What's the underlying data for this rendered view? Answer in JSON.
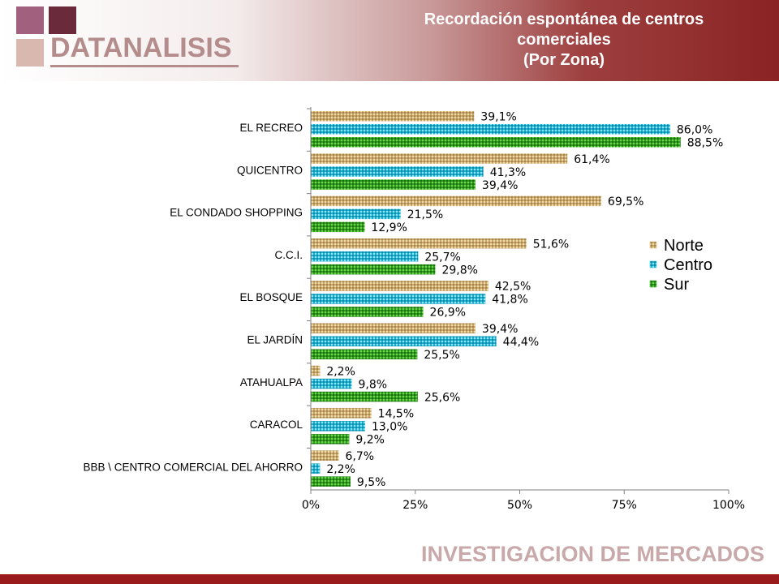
{
  "header": {
    "logo_text": "DATANALISIS",
    "title_line1": "Recordación espontánea de centros",
    "title_line2": "comerciales",
    "title_line3": "(Por Zona)"
  },
  "footer": {
    "text": "INVESTIGACION DE MERCADOS"
  },
  "colors": {
    "norte": "#c9a96a",
    "centro": "#1fb0d0",
    "sur": "#2e9c1c",
    "header_dark": "#8a2323",
    "footer_bar": "#9a1b1b"
  },
  "chart_data": {
    "type": "bar",
    "orientation": "horizontal",
    "categories": [
      "EL RECREO",
      "QUICENTRO",
      "EL CONDADO SHOPPING",
      "C.C.I.",
      "EL BOSQUE",
      "EL JARDÍN",
      "ATAHUALPA",
      "CARACOL",
      "BBB \\ CENTRO COMERCIAL DEL AHORRO"
    ],
    "series": [
      {
        "name": "Norte",
        "values": [
          39.1,
          61.4,
          69.5,
          51.6,
          42.5,
          39.4,
          2.2,
          14.5,
          6.7
        ],
        "labels": [
          "39,1%",
          "61,4%",
          "69,5%",
          "51,6%",
          "42,5%",
          "39,4%",
          "2,2%",
          "14,5%",
          "6,7%"
        ]
      },
      {
        "name": "Centro",
        "values": [
          86.0,
          41.3,
          21.5,
          25.7,
          41.8,
          44.4,
          9.8,
          13.0,
          2.2
        ],
        "labels": [
          "86,0%",
          "41,3%",
          "21,5%",
          "25,7%",
          "41,8%",
          "44,4%",
          "9,8%",
          "13,0%",
          "2,2%"
        ]
      },
      {
        "name": "Sur",
        "values": [
          88.5,
          39.4,
          12.9,
          29.8,
          26.9,
          25.5,
          25.6,
          9.2,
          9.5
        ],
        "labels": [
          "88,5%",
          "39,4%",
          "12,9%",
          "29,8%",
          "26,9%",
          "25,5%",
          "25,6%",
          "9,2%",
          "9,5%"
        ]
      }
    ],
    "xlim": [
      0,
      100
    ],
    "x_ticks": [
      0,
      25,
      50,
      75,
      100
    ],
    "x_tick_labels": [
      "0%",
      "25%",
      "50%",
      "75%",
      "100%"
    ],
    "legend_position": "right",
    "grid": false
  }
}
